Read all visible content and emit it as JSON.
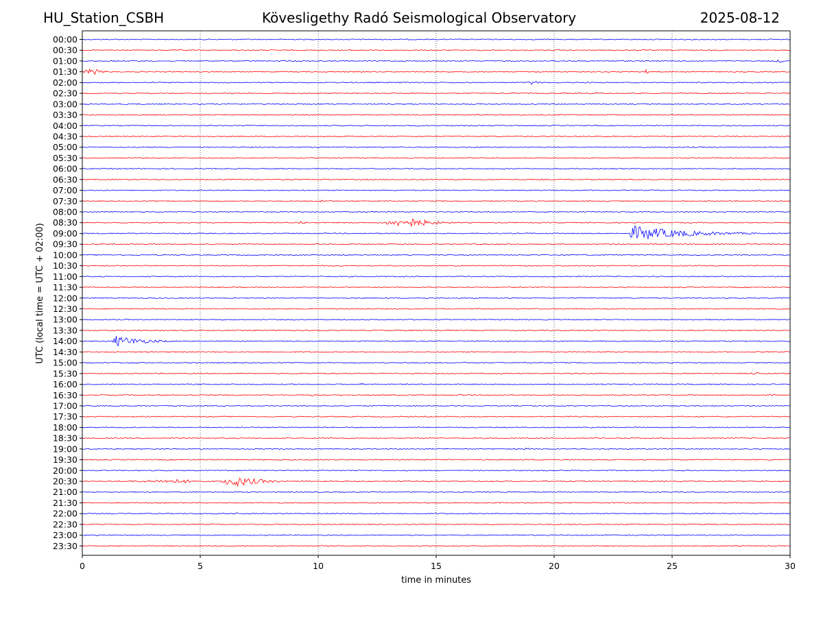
{
  "header": {
    "station": "HU_Station_CSBH",
    "observatory": "Kövesligethy Radó Seismological Observatory",
    "date": "2025-08-12"
  },
  "chart_data": {
    "type": "line",
    "title": "Kövesligethy Radó Seismological Observatory",
    "xlabel": "time in minutes",
    "ylabel": "UTC (local time = UTC + 02:00)",
    "xlim": [
      0,
      30
    ],
    "x_ticks": [
      "0",
      "5",
      "10",
      "15",
      "20",
      "25",
      "30"
    ],
    "x_tick_values": [
      0,
      5,
      10,
      15,
      20,
      25,
      30
    ],
    "grid": "vertical dotted at every 5 minutes",
    "colors": {
      "even_rows": "#0000ff",
      "odd_rows": "#ff0000"
    },
    "rows": [
      "00:00",
      "00:30",
      "01:00",
      "01:30",
      "02:00",
      "02:30",
      "03:00",
      "03:30",
      "04:00",
      "04:30",
      "05:00",
      "05:30",
      "06:00",
      "06:30",
      "07:00",
      "07:30",
      "08:00",
      "08:30",
      "09:00",
      "09:30",
      "10:00",
      "10:30",
      "11:00",
      "11:30",
      "12:00",
      "12:30",
      "13:00",
      "13:30",
      "14:00",
      "14:30",
      "15:00",
      "15:30",
      "16:00",
      "16:30",
      "17:00",
      "17:30",
      "18:00",
      "18:30",
      "19:00",
      "19:30",
      "20:00",
      "20:30",
      "21:00",
      "21:30",
      "22:00",
      "22:30",
      "23:00",
      "23:30"
    ],
    "events": [
      {
        "row": "01:00",
        "start_min": 29.3,
        "peak_min": 29.6,
        "end_min": 30.0,
        "amplitude": 3
      },
      {
        "row": "01:30",
        "start_min": 0.0,
        "peak_min": 0.4,
        "end_min": 1.7,
        "amplitude": 5
      },
      {
        "row": "01:30",
        "start_min": 23.8,
        "peak_min": 23.85,
        "end_min": 24.3,
        "amplitude": 4
      },
      {
        "row": "02:00",
        "start_min": 18.9,
        "peak_min": 18.95,
        "end_min": 19.8,
        "amplitude": 5
      },
      {
        "row": "03:30",
        "start_min": 16.6,
        "peak_min": 16.8,
        "end_min": 17.0,
        "amplitude": 2
      },
      {
        "row": "07:30",
        "start_min": 10.0,
        "peak_min": 10.1,
        "end_min": 10.6,
        "amplitude": 3
      },
      {
        "row": "08:30",
        "start_min": 9.1,
        "peak_min": 9.3,
        "end_min": 10.0,
        "amplitude": 3
      },
      {
        "row": "08:30",
        "start_min": 12.8,
        "peak_min": 13.9,
        "end_min": 16.7,
        "amplitude": 7
      },
      {
        "row": "09:00",
        "start_min": 23.2,
        "peak_min": 23.4,
        "end_min": 30.0,
        "amplitude": 11
      },
      {
        "row": "10:00",
        "start_min": 13.8,
        "peak_min": 13.9,
        "end_min": 14.2,
        "amplitude": 2
      },
      {
        "row": "14:00",
        "start_min": 1.3,
        "peak_min": 1.4,
        "end_min": 5.0,
        "amplitude": 8
      },
      {
        "row": "15:30",
        "start_min": 28.2,
        "peak_min": 28.6,
        "end_min": 29.2,
        "amplitude": 2
      },
      {
        "row": "16:00",
        "start_min": 11.8,
        "peak_min": 11.85,
        "end_min": 12.2,
        "amplitude": 3
      },
      {
        "row": "16:30",
        "start_min": 9.6,
        "peak_min": 9.8,
        "end_min": 10.2,
        "amplitude": 2
      },
      {
        "row": "19:00",
        "start_min": 18.7,
        "peak_min": 18.8,
        "end_min": 19.4,
        "amplitude": 3
      },
      {
        "row": "20:30",
        "start_min": 1.8,
        "peak_min": 4.3,
        "end_min": 5.7,
        "amplitude": 3
      },
      {
        "row": "20:30",
        "start_min": 5.9,
        "peak_min": 6.5,
        "end_min": 9.5,
        "amplitude": 8
      },
      {
        "row": "22:00",
        "start_min": 6.5,
        "peak_min": 6.55,
        "end_min": 6.7,
        "amplitude": 3
      }
    ]
  }
}
